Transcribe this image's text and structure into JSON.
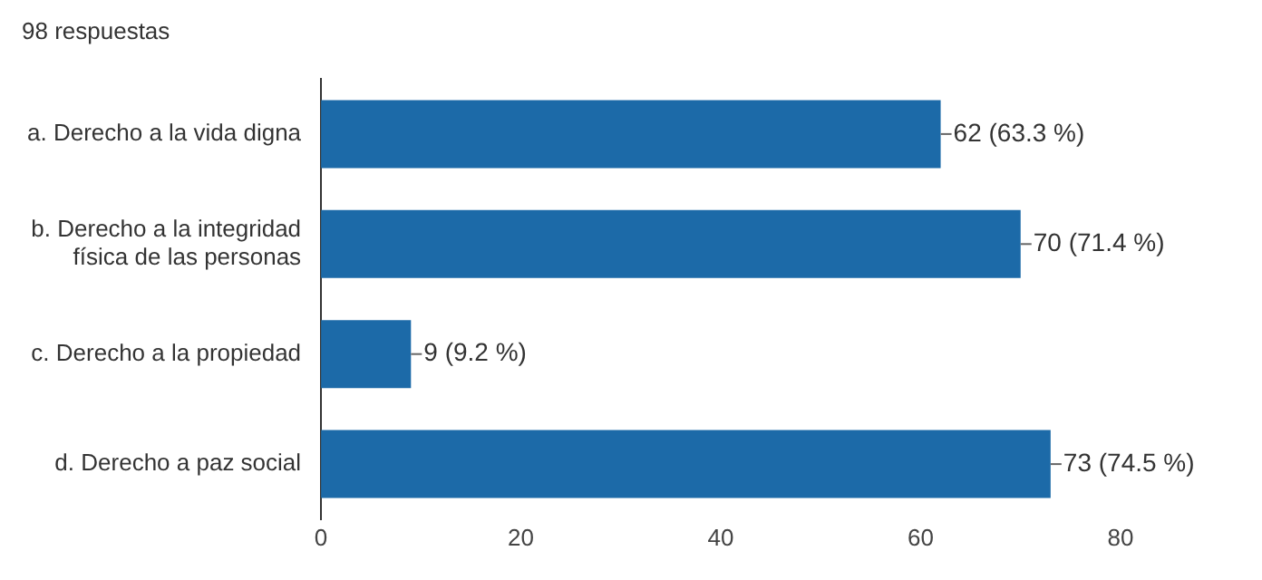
{
  "chart_data": {
    "type": "bar",
    "title": "98 respuestas",
    "orientation": "horizontal",
    "categories": [
      "a. Derecho a la vida digna",
      "b. Derecho a la integridad física de las personas",
      "c. Derecho a la propiedad",
      "d. Derecho a paz social"
    ],
    "values": [
      62,
      70,
      9,
      73
    ],
    "value_labels": [
      "62 (63.3 %)",
      "70 (71.4 %)",
      "9 (9.2 %)",
      "73 (74.5 %)"
    ],
    "color": "#1c6aa8",
    "xlim": [
      0,
      80
    ],
    "xticks": [
      0,
      20,
      40,
      60,
      80
    ],
    "grid": false,
    "legend": false
  }
}
